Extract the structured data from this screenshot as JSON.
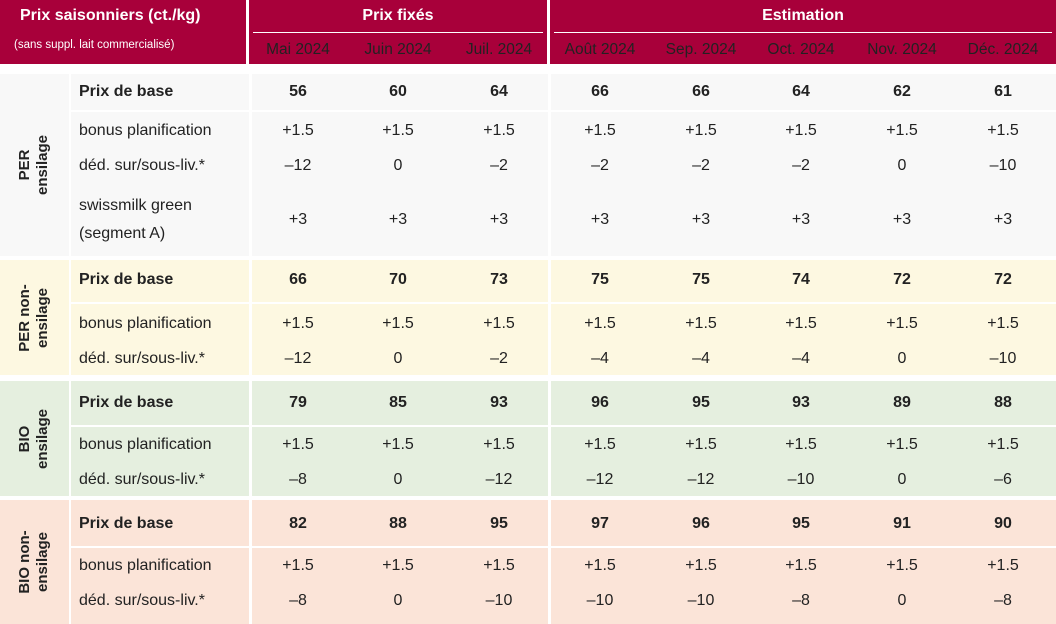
{
  "header": {
    "title": "Prix saisonniers (ct./kg)",
    "subtitle": "(sans suppl. lait commercialisé)",
    "group_fixed": "Prix fixés",
    "group_estimate": "Estimation",
    "months": [
      "Mai 2024",
      "Juin 2024",
      "Juil. 2024",
      "Août 2024",
      "Sep. 2024",
      "Oct. 2024",
      "Nov. 2024",
      "Déc. 2024"
    ]
  },
  "blocks": [
    {
      "name_line1": "PER",
      "name_line2": "ensilage",
      "bg": "#f8f8f8",
      "rows": [
        {
          "label": "Prix de base",
          "values": [
            "56",
            "60",
            "64",
            "66",
            "66",
            "64",
            "62",
            "61"
          ]
        },
        {
          "label": "bonus planification",
          "values": [
            "+1.5",
            "+1.5",
            "+1.5",
            "+1.5",
            "+1.5",
            "+1.5",
            "+1.5",
            "+1.5"
          ]
        },
        {
          "label": "déd. sur/sous-liv.*",
          "values": [
            "–12",
            "0",
            "–2",
            "–2",
            "–2",
            "–2",
            "0",
            "–10"
          ]
        },
        {
          "label_line1": "swissmilk green",
          "label_line2": "(segment A)",
          "values": [
            "+3",
            "+3",
            "+3",
            "+3",
            "+3",
            "+3",
            "+3",
            "+3"
          ]
        }
      ]
    },
    {
      "name_line1": "PER non-",
      "name_line2": "ensilage",
      "bg": "#fdf8e1",
      "rows": [
        {
          "label": "Prix de base",
          "values": [
            "66",
            "70",
            "73",
            "75",
            "75",
            "74",
            "72",
            "72"
          ]
        },
        {
          "label": "bonus planification",
          "values": [
            "+1.5",
            "+1.5",
            "+1.5",
            "+1.5",
            "+1.5",
            "+1.5",
            "+1.5",
            "+1.5"
          ]
        },
        {
          "label": "déd. sur/sous-liv.*",
          "values": [
            "–12",
            "0",
            "–2",
            "–4",
            "–4",
            "–4",
            "0",
            "–10"
          ]
        }
      ]
    },
    {
      "name_line1": "BIO",
      "name_line2": "ensilage",
      "bg": "#e5efdf",
      "rows": [
        {
          "label": "Prix de base",
          "values": [
            "79",
            "85",
            "93",
            "96",
            "95",
            "93",
            "89",
            "88"
          ]
        },
        {
          "label": "bonus planification",
          "values": [
            "+1.5",
            "+1.5",
            "+1.5",
            "+1.5",
            "+1.5",
            "+1.5",
            "+1.5",
            "+1.5"
          ]
        },
        {
          "label": "déd. sur/sous-liv.*",
          "values": [
            "–8",
            "0",
            "–12",
            "–12",
            "–12",
            "–10",
            "0",
            "–6"
          ]
        }
      ]
    },
    {
      "name_line1": "BIO non-",
      "name_line2": "ensilage",
      "bg": "#fbe4d8",
      "rows": [
        {
          "label": "Prix de base",
          "values": [
            "82",
            "88",
            "95",
            "97",
            "96",
            "95",
            "91",
            "90"
          ]
        },
        {
          "label": "bonus planification",
          "values": [
            "+1.5",
            "+1.5",
            "+1.5",
            "+1.5",
            "+1.5",
            "+1.5",
            "+1.5",
            "+1.5"
          ]
        },
        {
          "label": "déd. sur/sous-liv.*",
          "values": [
            "–8",
            "0",
            "–10",
            "–10",
            "–10",
            "–8",
            "0",
            "–8"
          ]
        }
      ]
    }
  ]
}
